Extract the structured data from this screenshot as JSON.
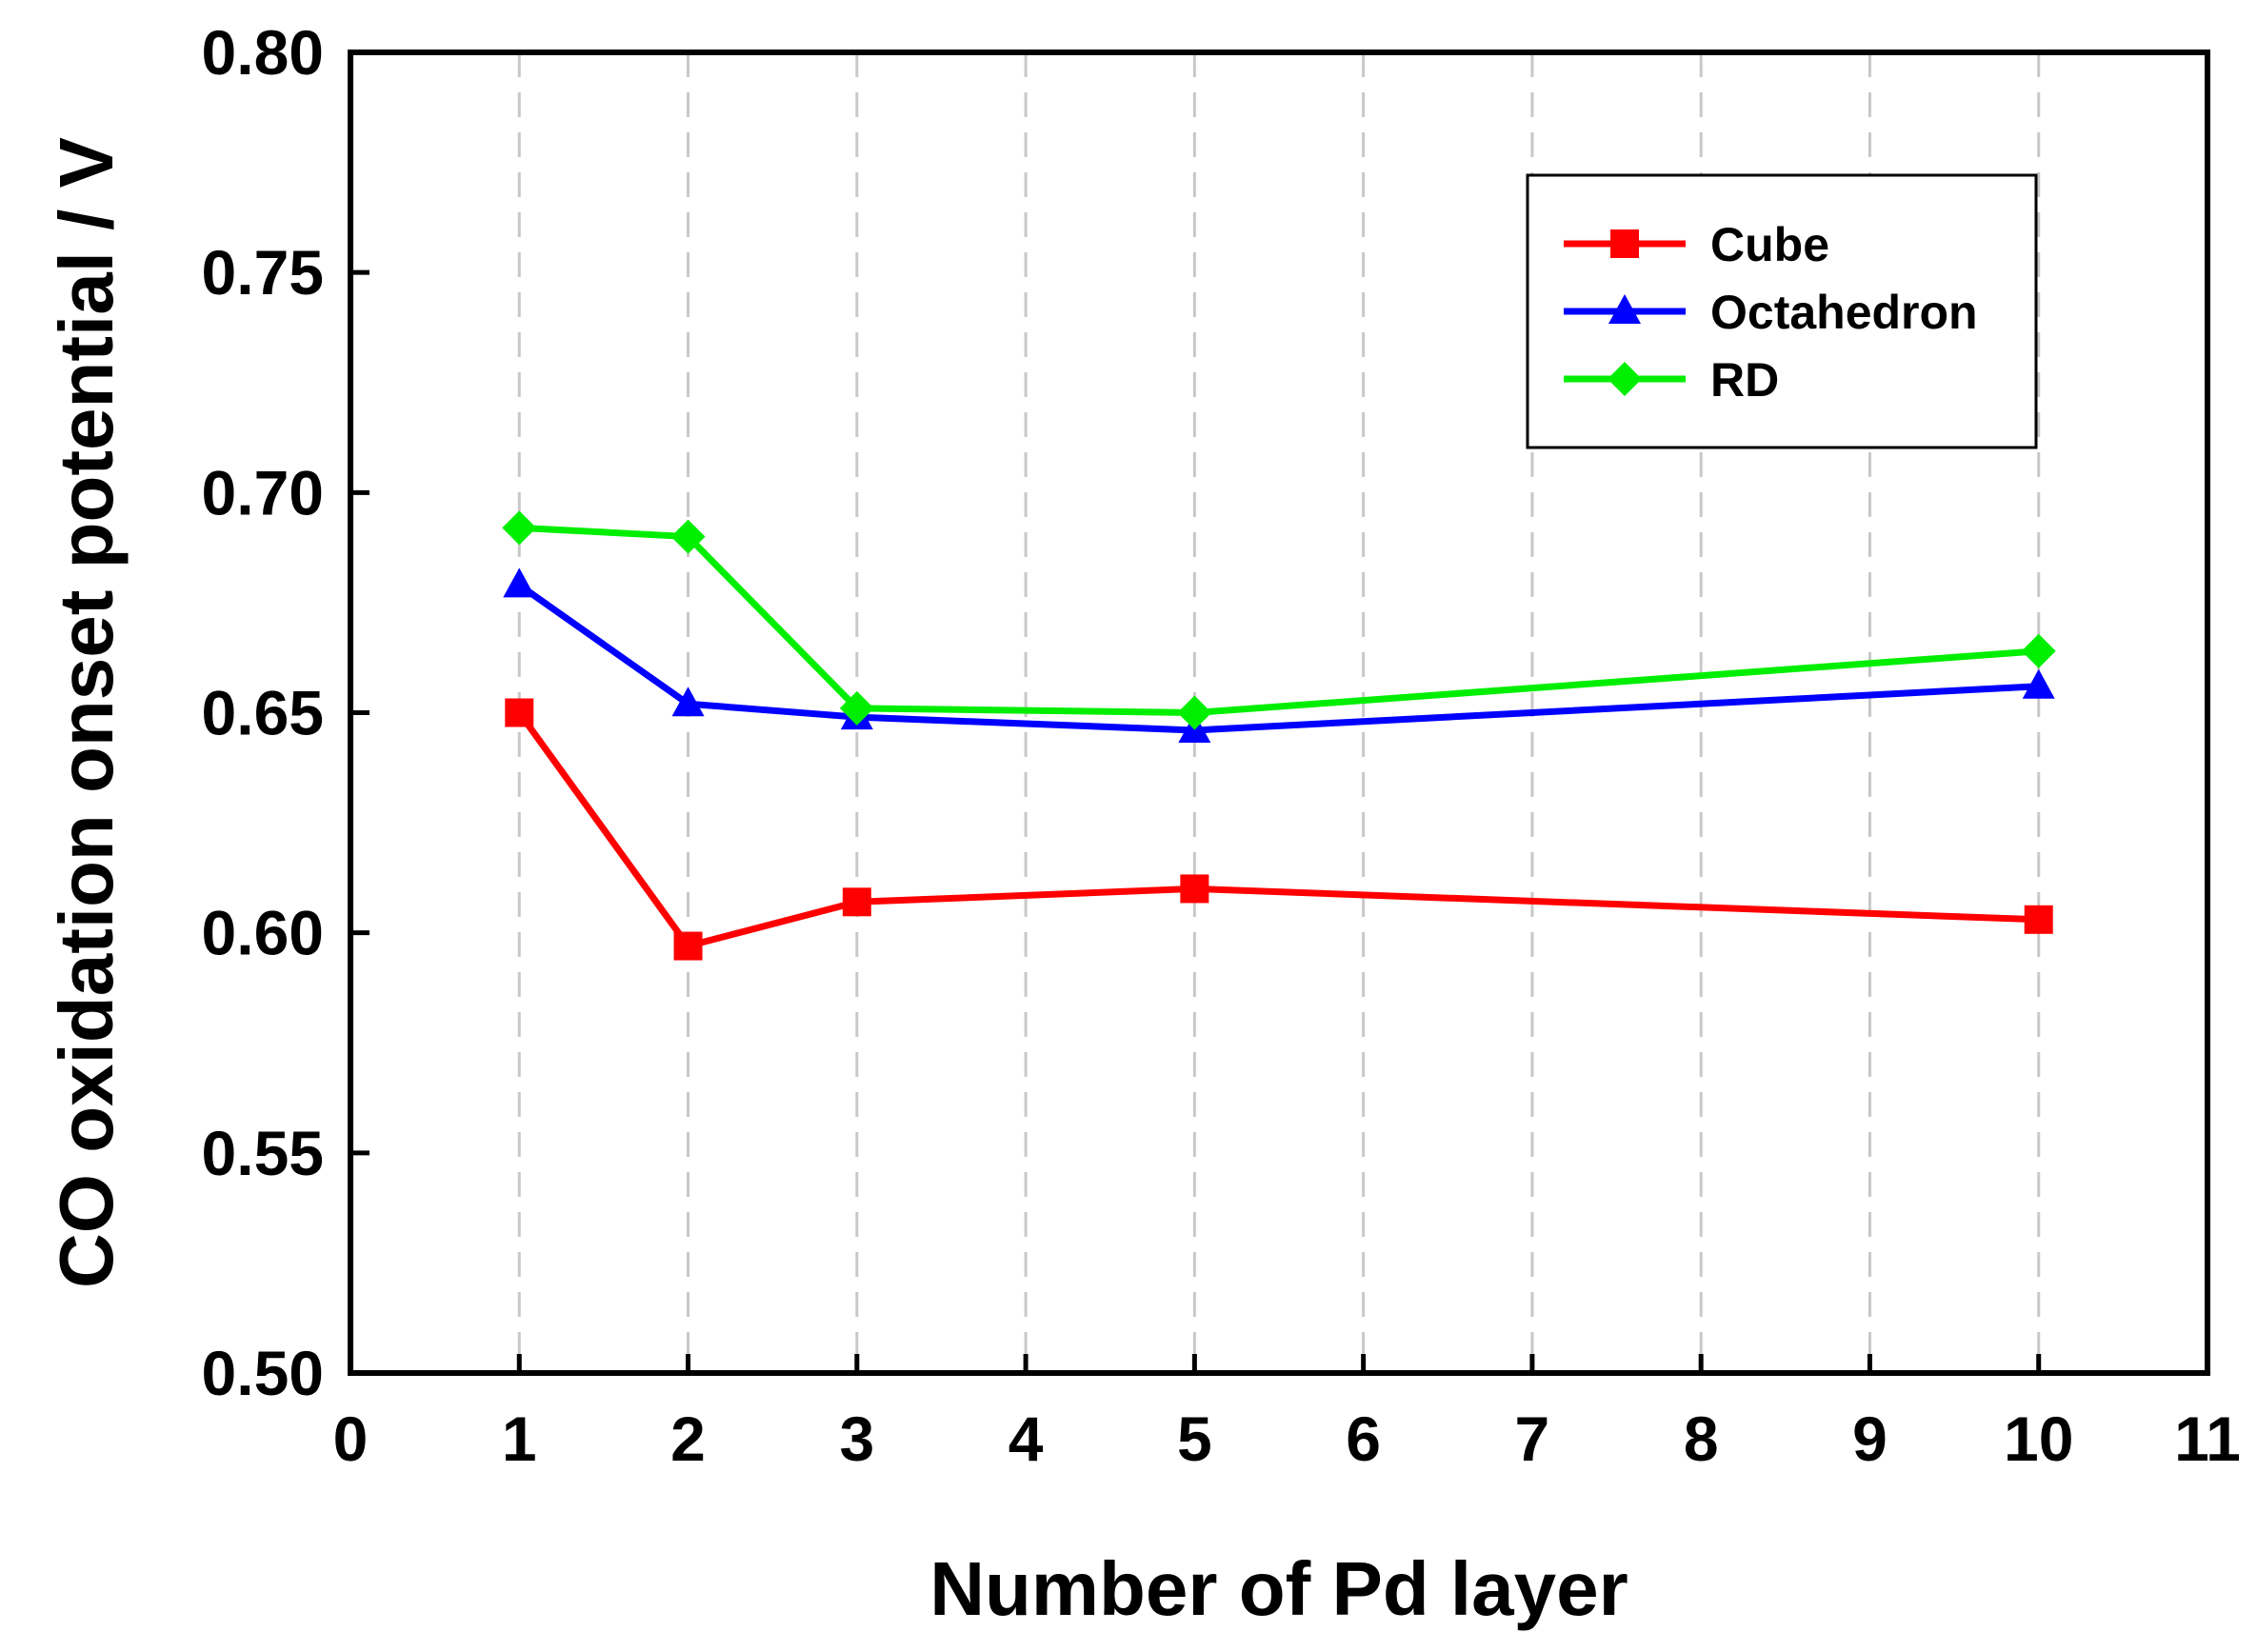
{
  "chart_data": {
    "type": "line",
    "title": "",
    "xlabel": "Number of Pd layer",
    "ylabel": "CO oxidation onset potential / V",
    "xlim": [
      0,
      11
    ],
    "ylim": [
      0.5,
      0.8
    ],
    "xticks": [
      0,
      1,
      2,
      3,
      4,
      5,
      6,
      7,
      8,
      9,
      10,
      11
    ],
    "xtick_labels": [
      "0",
      "1",
      "2",
      "3",
      "4",
      "5",
      "6",
      "7",
      "8",
      "9",
      "10",
      "11"
    ],
    "yticks": [
      0.5,
      0.55,
      0.6,
      0.65,
      0.7,
      0.75,
      0.8
    ],
    "ytick_labels": [
      "0.50",
      "0.55",
      "0.60",
      "0.65",
      "0.70",
      "0.75",
      "0.80"
    ],
    "grid": "vertical dashed at x = 1..10",
    "legend_position": "top-right",
    "x": [
      1,
      2,
      3,
      5,
      10
    ],
    "series": [
      {
        "name": "Cube",
        "color": "#ff0000",
        "marker": "square",
        "values": [
          0.65,
          0.597,
          0.607,
          0.61,
          0.603
        ]
      },
      {
        "name": "Octahedron",
        "color": "#0000ff",
        "marker": "triangle",
        "values": [
          0.679,
          0.652,
          0.649,
          0.646,
          0.656
        ]
      },
      {
        "name": "RD",
        "color": "#00ee00",
        "marker": "diamond",
        "values": [
          0.692,
          0.69,
          0.651,
          0.65,
          0.664
        ]
      }
    ]
  }
}
